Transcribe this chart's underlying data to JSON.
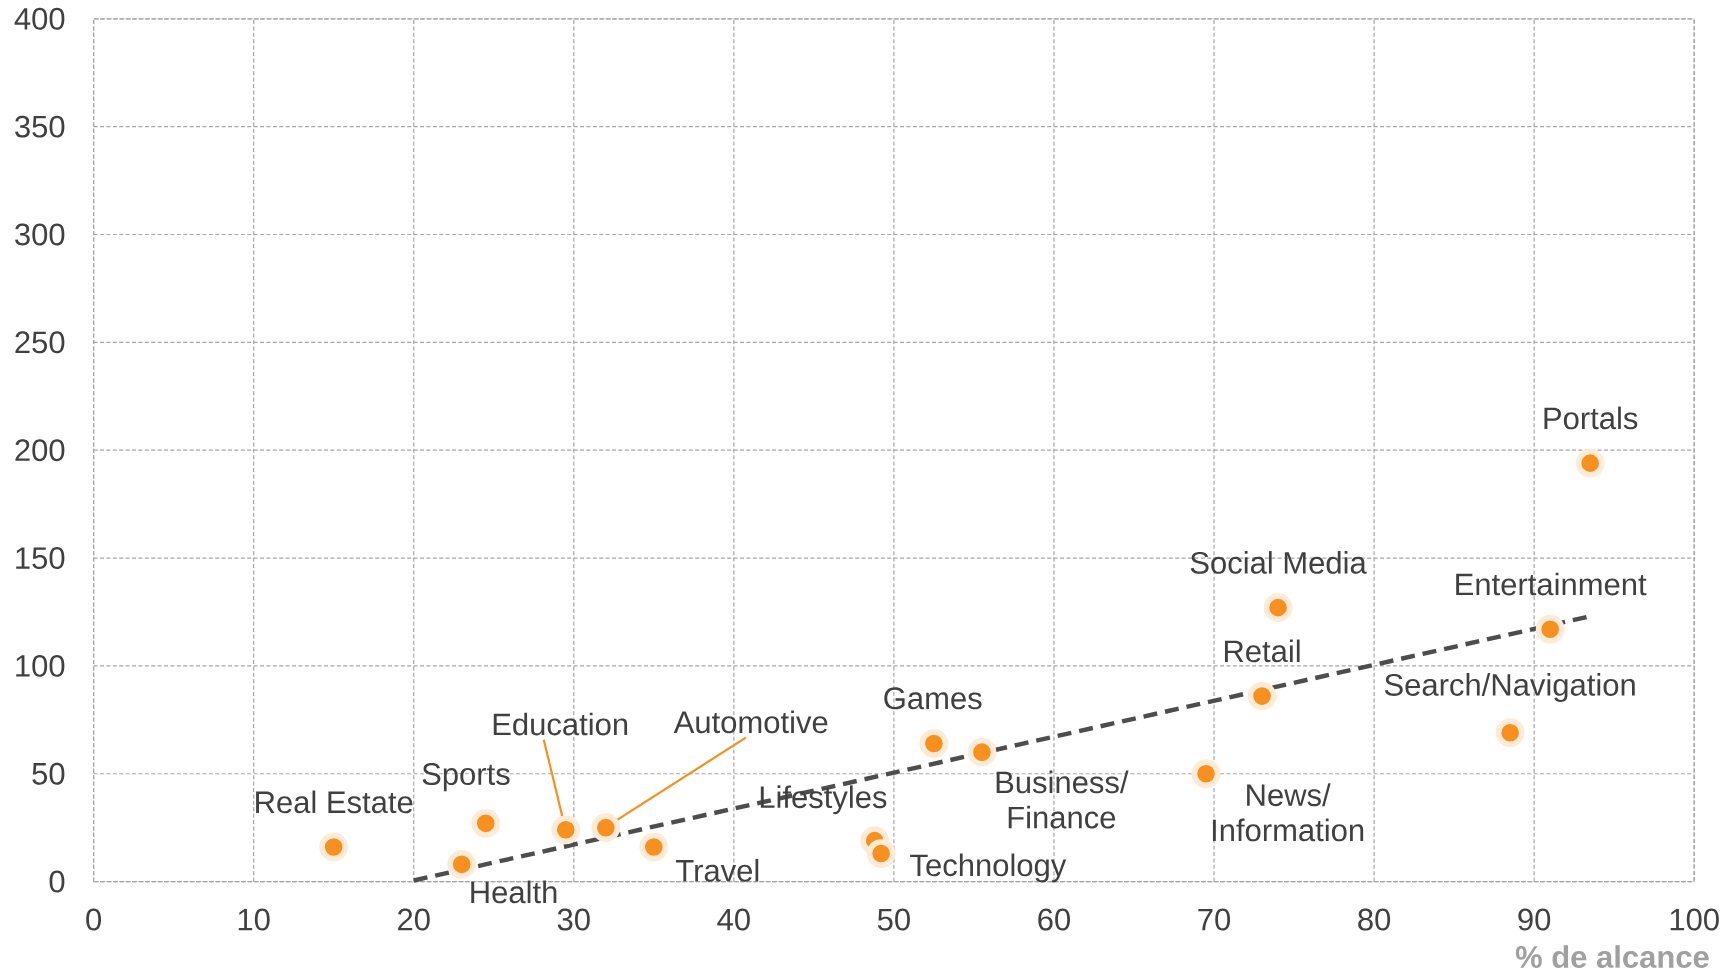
{
  "chart_data": {
    "type": "scatter",
    "xlabel": "% de alcance",
    "xlim": [
      0,
      100
    ],
    "ylim": [
      0,
      400
    ],
    "xticks": [
      0,
      10,
      20,
      30,
      40,
      50,
      60,
      70,
      80,
      90,
      100
    ],
    "yticks": [
      0,
      50,
      100,
      150,
      200,
      250,
      300,
      350,
      400
    ],
    "grid": true,
    "marker": "circle",
    "series": [
      {
        "color": "#f7901e",
        "x": [
          15,
          23,
          24.5,
          29.5,
          32,
          35,
          48.8,
          49.2,
          52.5,
          55.5,
          69.5,
          73,
          74,
          88.5,
          91,
          93.5
        ],
        "values": [
          16,
          8,
          27,
          24,
          25,
          16,
          19,
          13,
          64,
          60,
          50,
          86,
          127,
          69,
          117,
          194
        ]
      },
      {
        "type": "line",
        "color": "#4d4d4d",
        "marker": "none",
        "line_style": "dashed",
        "x": [
          20,
          93.5
        ],
        "values": [
          0.5,
          123
        ]
      }
    ],
    "annotations": [
      {
        "text": "Real Estate",
        "x": 15,
        "y": 16
      },
      {
        "text": "Health",
        "x": 23,
        "y": 8
      },
      {
        "text": "Sports",
        "x": 24.5,
        "y": 27
      },
      {
        "text": "Education",
        "x": 29.5,
        "y": 24
      },
      {
        "text": "Automotive",
        "x": 32,
        "y": 25
      },
      {
        "text": "Travel",
        "x": 35,
        "y": 16
      },
      {
        "text": "Lifestyles",
        "x": 48.8,
        "y": 19
      },
      {
        "text": "Technology",
        "x": 49.2,
        "y": 13
      },
      {
        "text": "Games",
        "x": 52.5,
        "y": 64
      },
      {
        "text": "Business/ Finance",
        "x": 55.5,
        "y": 60
      },
      {
        "text": "News/ Information",
        "x": 69.5,
        "y": 50
      },
      {
        "text": "Retail",
        "x": 73,
        "y": 86
      },
      {
        "text": "Social Media",
        "x": 74,
        "y": 127
      },
      {
        "text": "Search/Navigation",
        "x": 88.5,
        "y": 69
      },
      {
        "text": "Entertainment",
        "x": 91,
        "y": 117
      },
      {
        "text": "Portals",
        "x": 93.5,
        "y": 194
      }
    ]
  }
}
